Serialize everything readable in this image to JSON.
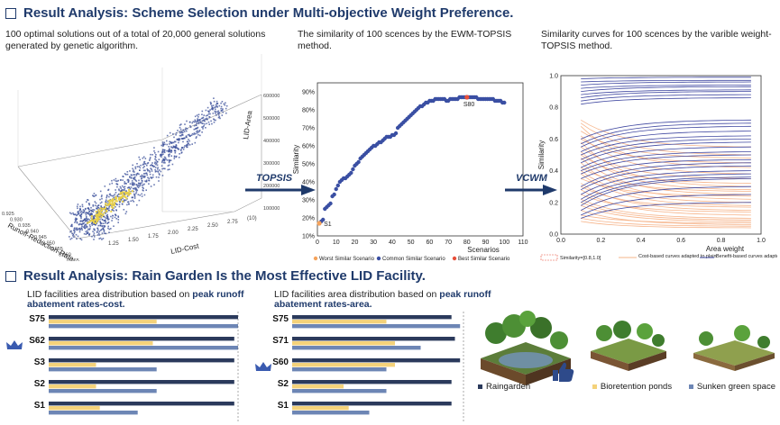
{
  "section1": {
    "title": "Result Analysis: Scheme Selection under Multi-objective Weight Preference."
  },
  "section2": {
    "title": "Result Analysis: Rain Garden Is the Most Effective LID Facility."
  },
  "panel1": {
    "caption": "100 optimal solutions out of a total of 20,000 general solutions generated by genetic algorithm.",
    "x_label": "LID-Cost",
    "y_label": "Runoff-Reduction-Rate",
    "z_label": "LID-Area",
    "x_ticks": [
      "1.25",
      "1.50",
      "1.75",
      "2.00",
      "2.25",
      "2.50",
      "2.75",
      "(10)"
    ],
    "y_ticks": [
      "0.925",
      "0.930",
      "0.935",
      "0.940",
      "0.945",
      "0.950",
      "0.955",
      "0.960",
      "0.965"
    ],
    "z_ticks": [
      "600000",
      "500000",
      "400000",
      "300000",
      "200000",
      "100000"
    ]
  },
  "arrow1": "TOPSIS",
  "arrow2": "VCWM",
  "panel2": {
    "caption": "The similarity of 100 scences by the EWM-TOPSIS method.",
    "chart_data": {
      "type": "scatter",
      "title": "The similarity of 100 scences by the EWM-TOPSIS method.",
      "xlabel": "Scenarios",
      "ylabel": "Similarity",
      "xlim": [
        0,
        110
      ],
      "ylim": [
        10,
        95
      ],
      "x_ticks": [
        "0",
        "10",
        "20",
        "30",
        "40",
        "50",
        "60",
        "70",
        "80",
        "90",
        "100",
        "110"
      ],
      "y_ticks": [
        "10%",
        "20%",
        "30%",
        "40%",
        "50%",
        "60%",
        "70%",
        "80%",
        "90%"
      ],
      "annotations": [
        "S1",
        "S80"
      ],
      "legend": [
        "Worst Similar Scenario",
        "Common Similar Scenario",
        "Best Similar Scenario"
      ],
      "colors": {
        "worst": "#f5a35c",
        "common": "#3a4fa3",
        "best": "#e8503a"
      },
      "worst": {
        "x": 1,
        "y": 17
      },
      "best": {
        "x": 80,
        "y": 87
      },
      "series": [
        {
          "name": "Common Similar Scenario",
          "x": [
            2,
            3,
            4,
            5,
            6,
            7,
            8,
            9,
            10,
            11,
            12,
            13,
            14,
            15,
            16,
            17,
            18,
            19,
            20,
            21,
            22,
            23,
            24,
            25,
            26,
            27,
            28,
            29,
            30,
            31,
            32,
            33,
            34,
            35,
            36,
            37,
            38,
            39,
            40,
            41,
            42,
            43,
            44,
            45,
            46,
            47,
            48,
            49,
            50,
            51,
            52,
            53,
            54,
            55,
            56,
            57,
            58,
            59,
            60,
            61,
            62,
            63,
            64,
            65,
            66,
            67,
            68,
            69,
            70,
            71,
            72,
            73,
            74,
            75,
            76,
            77,
            78,
            79,
            81,
            82,
            83,
            84,
            85,
            86,
            87,
            88,
            89,
            90,
            91,
            92,
            93,
            94,
            95,
            96,
            97,
            98,
            99,
            100
          ],
          "y": [
            18,
            19,
            25,
            26,
            27,
            28,
            32,
            33,
            36,
            38,
            40,
            41,
            42,
            42,
            43,
            44,
            45,
            47,
            49,
            50,
            51,
            53,
            54,
            55,
            56,
            57,
            58,
            59,
            60,
            60,
            61,
            62,
            62,
            63,
            64,
            65,
            65,
            65,
            66,
            66,
            67,
            70,
            71,
            72,
            73,
            74,
            75,
            76,
            77,
            78,
            79,
            80,
            81,
            82,
            82,
            83,
            84,
            84,
            85,
            85,
            85,
            86,
            86,
            86,
            86,
            86,
            86,
            85,
            85,
            86,
            86,
            86,
            86,
            86,
            87,
            87,
            87,
            87,
            87,
            87,
            87,
            87,
            87,
            86,
            86,
            86,
            86,
            86,
            86,
            86,
            86,
            86,
            85,
            85,
            85,
            85,
            84,
            84
          ]
        }
      ]
    }
  },
  "panel3": {
    "caption": "Similarity curves for 100 scences by the varible weight-TOPSIS method.",
    "chart_data": {
      "type": "line",
      "title": "Similarity curves for 100 scences by the varible weight-TOPSIS method.",
      "xlabel": "Area weight",
      "ylabel": "Similarity",
      "xlim": [
        0,
        1.0
      ],
      "ylim": [
        0,
        1.0
      ],
      "x_ticks": [
        "0.0",
        "0.2",
        "0.4",
        "0.6",
        "0.8",
        "1.0"
      ],
      "y_ticks": [
        "0.0",
        "0.2",
        "0.4",
        "0.6",
        "0.8",
        "1.0"
      ],
      "legend": [
        "Similarity=[0.8,1.0]",
        "Cost-based curves adapted to plain",
        "Benefit-based curves adapted to mountain"
      ],
      "colors": {
        "cost": "#f6b48a",
        "benefit": "#3f47a0",
        "band": "#e8503a"
      },
      "series": [
        {
          "name": "Cost-based curves adapted to plain",
          "x": [
            0.1,
            0.95
          ],
          "starts": [
            0.72,
            0.7,
            0.68,
            0.65,
            0.62,
            0.6,
            0.58,
            0.55,
            0.52,
            0.5,
            0.48,
            0.45,
            0.42,
            0.4,
            0.38,
            0.35,
            0.32,
            0.3,
            0.28,
            0.25,
            0.22,
            0.2,
            0.18,
            0.15,
            0.12,
            0.1,
            0.08
          ],
          "ends": [
            0.55,
            0.5,
            0.42,
            0.48,
            0.38,
            0.45,
            0.3,
            0.35,
            0.28,
            0.32,
            0.25,
            0.22,
            0.27,
            0.2,
            0.18,
            0.24,
            0.15,
            0.17,
            0.12,
            0.14,
            0.1,
            0.09,
            0.08,
            0.06,
            0.07,
            0.05,
            0.04
          ]
        },
        {
          "name": "Benefit-based curves adapted to mountain",
          "x": [
            0.1,
            0.95
          ],
          "starts": [
            0.98,
            0.96,
            0.94,
            0.92,
            0.9,
            0.88,
            0.86,
            0.84,
            0.82,
            0.6,
            0.57,
            0.55,
            0.52,
            0.5,
            0.47,
            0.45,
            0.42,
            0.4,
            0.38,
            0.35,
            0.3,
            0.28,
            0.25,
            0.22,
            0.2,
            0.18,
            0.15,
            0.12,
            0.1
          ],
          "ends": [
            0.99,
            0.97,
            0.96,
            0.94,
            0.93,
            0.91,
            0.9,
            0.88,
            0.86,
            0.72,
            0.7,
            0.68,
            0.65,
            0.62,
            0.6,
            0.58,
            0.55,
            0.52,
            0.5,
            0.47,
            0.45,
            0.43,
            0.4,
            0.38,
            0.36,
            0.35,
            0.3,
            0.25,
            0.2
          ]
        }
      ]
    }
  },
  "bar_left": {
    "caption_pre": "LID facilities area distribution based on ",
    "caption_hl": "peak runoff abatement rates-cost.",
    "chart_data": {
      "type": "bar",
      "categories": [
        "S75",
        "S62",
        "S3",
        "S2",
        "S1"
      ],
      "series": [
        {
          "name": "Raingarden",
          "values": [
            1.0,
            0.98,
            0.98,
            0.98,
            0.98
          ]
        },
        {
          "name": "Bioretention ponds",
          "values": [
            0.57,
            0.55,
            0.25,
            0.25,
            0.27
          ]
        },
        {
          "name": "Sunken green space",
          "values": [
            1.0,
            1.0,
            0.57,
            0.57,
            0.47
          ]
        }
      ]
    }
  },
  "bar_right": {
    "caption_pre": "LID facilities area distribution based on ",
    "caption_hl": "peak runoff abatement rates-area.",
    "chart_data": {
      "type": "bar",
      "categories": [
        "S75",
        "S71",
        "S60",
        "S2",
        "S1"
      ],
      "series": [
        {
          "name": "Raingarden",
          "values": [
            0.93,
            0.95,
            0.98,
            0.93,
            0.93
          ]
        },
        {
          "name": "Bioretention ponds",
          "values": [
            0.55,
            0.6,
            0.6,
            0.3,
            0.33
          ]
        },
        {
          "name": "Sunken green space",
          "values": [
            0.98,
            0.75,
            0.55,
            0.55,
            0.45
          ]
        }
      ]
    }
  },
  "legend_bottom": {
    "raingarden": "Raingarden",
    "bioretention": "Bioretention ponds",
    "sunken": "Sunken green space"
  },
  "colors": {
    "navy": "#2b3a5c",
    "yellow": "#f4d27a",
    "steel": "#6d86b5",
    "title": "#1f3a6b"
  }
}
